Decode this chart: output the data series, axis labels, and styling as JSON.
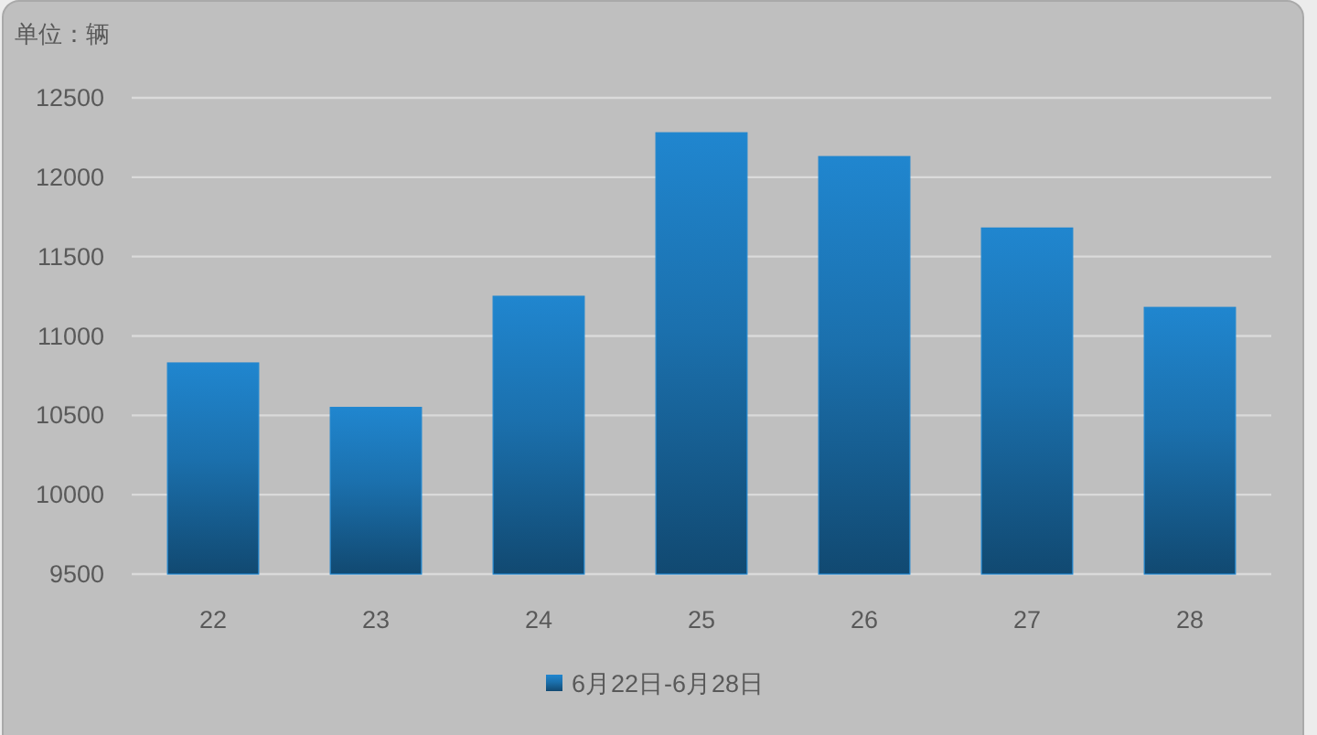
{
  "chart_data": {
    "type": "bar",
    "ylabel": "单位：辆",
    "categories": [
      "22",
      "23",
      "24",
      "25",
      "26",
      "27",
      "28"
    ],
    "series": [
      {
        "name": "6月22日-6月28日",
        "color": "#2086cf",
        "values": [
          10830,
          10550,
          11250,
          12280,
          12130,
          11680,
          11180
        ]
      }
    ],
    "ylim": [
      9500,
      12500
    ],
    "yticks": [
      9500,
      10000,
      10500,
      11000,
      11500,
      12000,
      12500
    ],
    "grid": "y",
    "legend": "bottom"
  }
}
